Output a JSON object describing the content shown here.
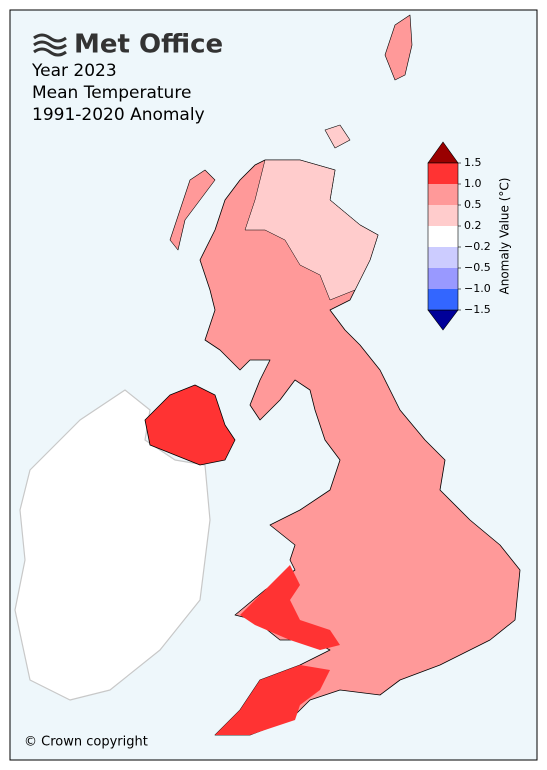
{
  "header": {
    "logo": "Met Office",
    "title_lines": [
      "Year 2023",
      "Mean Temperature",
      "1991-2020 Anomaly"
    ]
  },
  "colorbar": {
    "label": "Anomaly Value (°C)",
    "ticks": [
      {
        "value": 1.5,
        "label": "1.5"
      },
      {
        "value": 1,
        "label": "1.0"
      },
      {
        "value": 0.5,
        "label": "0.5"
      },
      {
        "value": 0.2,
        "label": "0.2"
      },
      {
        "value": -0.2,
        "label": "−0.2"
      },
      {
        "value": -0.5,
        "label": "−0.5"
      },
      {
        "value": -1,
        "label": "−1.0"
      },
      {
        "value": -1.5,
        "label": "−1.5"
      }
    ],
    "colors": [
      "#ff3333",
      "#ff9999",
      "#ffcccc",
      "#ffffff",
      "#ccccff",
      "#9999ff",
      "#3366ff"
    ],
    "over_color": "#990000",
    "under_color": "#000099"
  },
  "footer": {
    "copyright": "© Crown copyright"
  }
}
